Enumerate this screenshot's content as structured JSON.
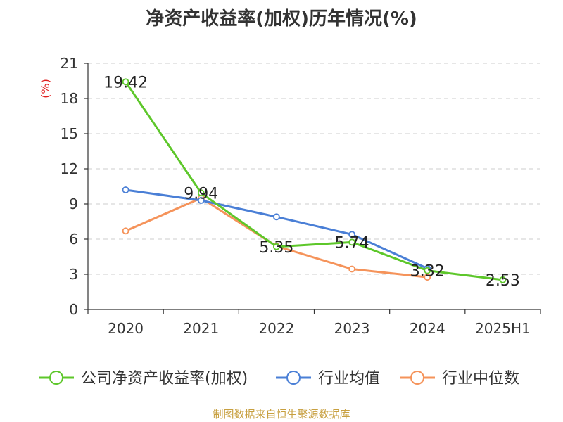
{
  "title": "净资产收益率(加权)历年情况(%)",
  "source": "制图数据来自恒生聚源数据库",
  "chart_data": {
    "type": "line",
    "title": "净资产收益率(加权)历年情况(%)",
    "unit": "(%)",
    "categories": [
      "2020",
      "2021",
      "2022",
      "2023",
      "2024",
      "2025H1"
    ],
    "ylim": [
      0,
      21
    ],
    "yticks": [
      0,
      3,
      6,
      9,
      12,
      15,
      18,
      21
    ],
    "grid": true,
    "legend_position": "bottom",
    "series": [
      {
        "name": "公司净资产收益率(加权)",
        "color": "#5dc72a",
        "values": [
          19.42,
          9.94,
          5.35,
          5.74,
          3.32,
          2.53
        ],
        "labels": [
          "19.42",
          "9.94",
          "5.35",
          "5.74",
          "3.32",
          "2.53"
        ]
      },
      {
        "name": "行业均值",
        "color": "#4a7fd6",
        "values": [
          10.2,
          9.3,
          7.9,
          6.4,
          3.5,
          null
        ]
      },
      {
        "name": "行业中位数",
        "color": "#f5935a",
        "values": [
          6.7,
          9.5,
          5.4,
          3.45,
          2.75,
          null
        ]
      }
    ]
  }
}
